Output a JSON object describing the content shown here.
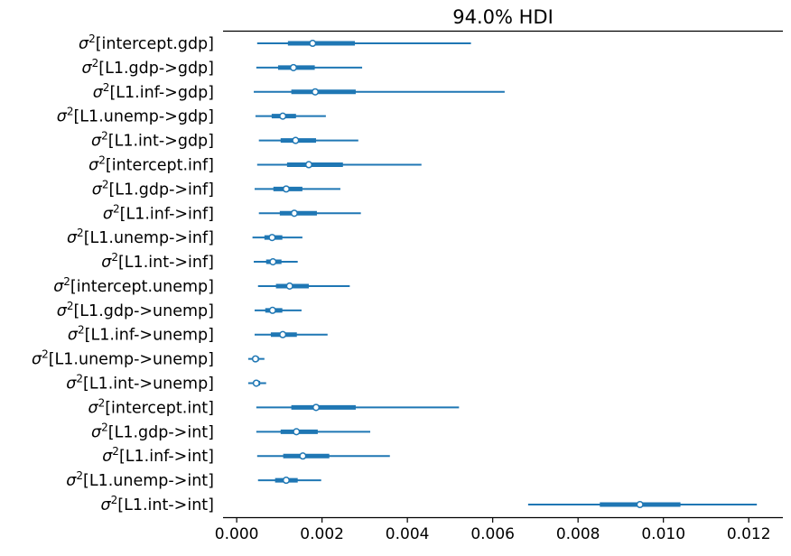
{
  "chart_data": {
    "type": "forest",
    "title": "94.0% HDI",
    "xlabel": "",
    "ylabel": "",
    "xlim": [
      -0.00032,
      0.0128
    ],
    "xticks": [
      "0.000",
      "0.002",
      "0.004",
      "0.006",
      "0.008",
      "0.010",
      "0.012"
    ],
    "xtick_values": [
      0,
      0.002,
      0.004,
      0.006,
      0.008,
      0.01,
      0.012
    ],
    "grid": false,
    "color": "#1f77b4",
    "rows": [
      {
        "label": "σ²[intercept.gdp]",
        "hdi_low": 0.00048,
        "q1": 0.0012,
        "median": 0.00178,
        "q3": 0.00277,
        "hdi_high": 0.00549
      },
      {
        "label": "σ²[L1.gdp->gdp]",
        "hdi_low": 0.00046,
        "q1": 0.00097,
        "median": 0.00133,
        "q3": 0.00183,
        "hdi_high": 0.00294
      },
      {
        "label": "σ²[L1.inf->gdp]",
        "hdi_low": 0.0004,
        "q1": 0.00128,
        "median": 0.00184,
        "q3": 0.00279,
        "hdi_high": 0.00628
      },
      {
        "label": "σ²[L1.unemp->gdp]",
        "hdi_low": 0.00044,
        "q1": 0.00082,
        "median": 0.00108,
        "q3": 0.00139,
        "hdi_high": 0.00209
      },
      {
        "label": "σ²[L1.int->gdp]",
        "hdi_low": 0.00052,
        "q1": 0.00103,
        "median": 0.00138,
        "q3": 0.00186,
        "hdi_high": 0.00285
      },
      {
        "label": "σ²[intercept.inf]",
        "hdi_low": 0.00048,
        "q1": 0.00118,
        "median": 0.00169,
        "q3": 0.00249,
        "hdi_high": 0.00433
      },
      {
        "label": "σ²[L1.gdp->inf]",
        "hdi_low": 0.00042,
        "q1": 0.00086,
        "median": 0.00116,
        "q3": 0.00154,
        "hdi_high": 0.00243
      },
      {
        "label": "σ²[L1.inf->inf]",
        "hdi_low": 0.00052,
        "q1": 0.00101,
        "median": 0.00135,
        "q3": 0.00188,
        "hdi_high": 0.00291
      },
      {
        "label": "σ²[L1.unemp->inf]",
        "hdi_low": 0.00037,
        "q1": 0.00065,
        "median": 0.00083,
        "q3": 0.00107,
        "hdi_high": 0.00154
      },
      {
        "label": "σ²[L1.int->inf]",
        "hdi_low": 0.0004,
        "q1": 0.00069,
        "median": 0.00085,
        "q3": 0.00105,
        "hdi_high": 0.00143
      },
      {
        "label": "σ²[intercept.unemp]",
        "hdi_low": 0.0005,
        "q1": 0.00092,
        "median": 0.00124,
        "q3": 0.00169,
        "hdi_high": 0.00265
      },
      {
        "label": "σ²[L1.gdp->unemp]",
        "hdi_low": 0.00042,
        "q1": 0.00067,
        "median": 0.00084,
        "q3": 0.00107,
        "hdi_high": 0.00152
      },
      {
        "label": "σ²[L1.inf->unemp]",
        "hdi_low": 0.00042,
        "q1": 0.0008,
        "median": 0.00108,
        "q3": 0.00141,
        "hdi_high": 0.00213
      },
      {
        "label": "σ²[L1.unemp->unemp]",
        "hdi_low": 0.00027,
        "q1": 0.00038,
        "median": 0.00044,
        "q3": 0.00052,
        "hdi_high": 0.00065
      },
      {
        "label": "σ²[L1.int->unemp]",
        "hdi_low": 0.00027,
        "q1": 0.00039,
        "median": 0.00046,
        "q3": 0.00055,
        "hdi_high": 0.00069
      },
      {
        "label": "σ²[intercept.int]",
        "hdi_low": 0.00046,
        "q1": 0.00128,
        "median": 0.00186,
        "q3": 0.00279,
        "hdi_high": 0.00521
      },
      {
        "label": "σ²[L1.gdp->int]",
        "hdi_low": 0.00046,
        "q1": 0.00103,
        "median": 0.0014,
        "q3": 0.0019,
        "hdi_high": 0.00313
      },
      {
        "label": "σ²[L1.inf->int]",
        "hdi_low": 0.00048,
        "q1": 0.00109,
        "median": 0.00155,
        "q3": 0.00217,
        "hdi_high": 0.00359
      },
      {
        "label": "σ²[L1.unemp->int]",
        "hdi_low": 0.0005,
        "q1": 0.0009,
        "median": 0.00116,
        "q3": 0.00143,
        "hdi_high": 0.00198
      },
      {
        "label": "σ²[L1.int->int]",
        "hdi_low": 0.00683,
        "q1": 0.00851,
        "median": 0.00945,
        "q3": 0.0104,
        "hdi_high": 0.01219
      }
    ]
  }
}
